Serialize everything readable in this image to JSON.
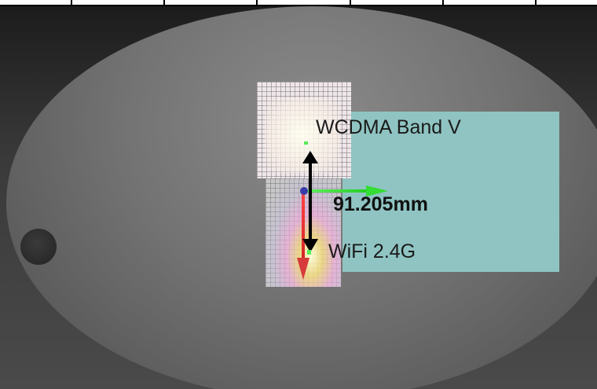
{
  "labels": {
    "wcdma": "WCDMA Band V",
    "wifi": "WiFi 2.4G",
    "distance": "91.205mm"
  },
  "colors": {
    "antenna_plate": "#8fc4c2",
    "axis_x": "#44dd44",
    "axis_y": "#dd3333",
    "origin": "#3a3aa8",
    "measure_arrow": "#000000"
  },
  "icons": {
    "origin": "origin-dot-icon",
    "x_axis": "x-axis-arrow-icon",
    "y_axis": "y-axis-arrow-icon",
    "measure": "double-arrow-icon"
  }
}
